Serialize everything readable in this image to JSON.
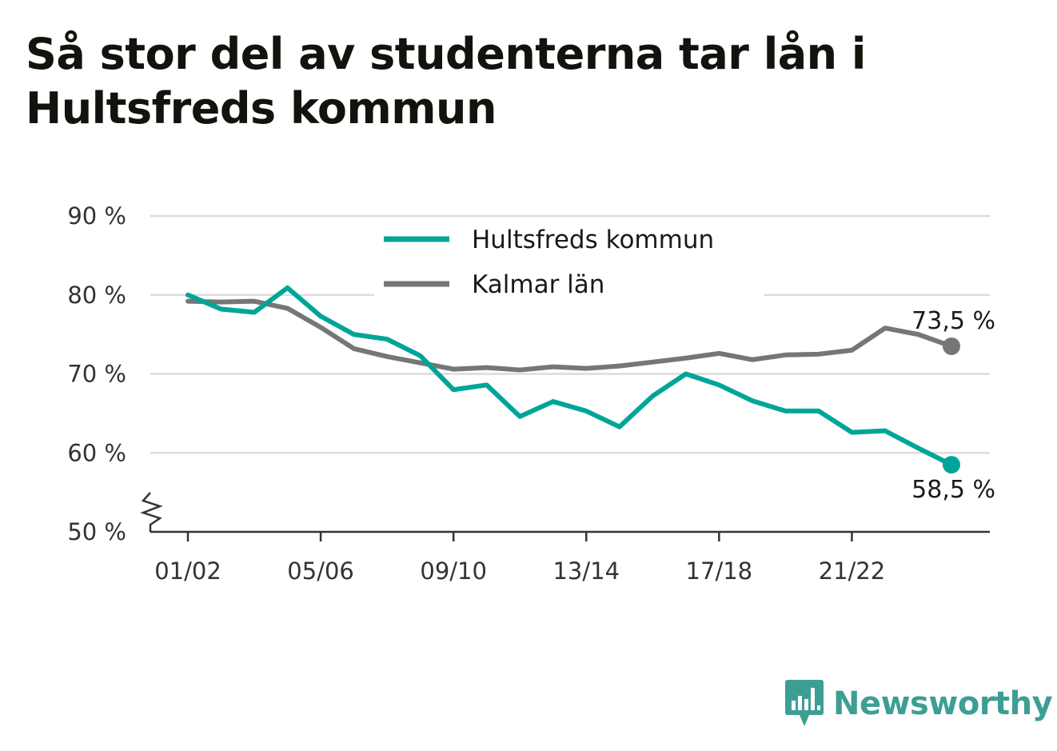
{
  "title_lines": [
    "Så stor del av studenterna tar lån i",
    "Hultsfreds kommun"
  ],
  "brand": {
    "name": "Newsworthy",
    "icon": "bar-chart-speech-bubble-icon",
    "color": "#3d9e94"
  },
  "chart_data": {
    "type": "line",
    "title": "Så stor del av studenterna tar lån i Hultsfreds kommun",
    "xlabel": "",
    "ylabel": "",
    "x": [
      "01/02",
      "02/03",
      "03/04",
      "04/05",
      "05/06",
      "06/07",
      "07/08",
      "08/09",
      "09/10",
      "10/11",
      "11/12",
      "12/13",
      "13/14",
      "14/15",
      "15/16",
      "16/17",
      "17/18",
      "18/19",
      "19/20",
      "20/21",
      "21/22",
      "22/23",
      "23/24",
      "24/25"
    ],
    "x_tick_labels": [
      "01/02",
      "05/06",
      "09/10",
      "13/14",
      "17/18",
      "21/22"
    ],
    "y_ticks": [
      50,
      60,
      70,
      80,
      90
    ],
    "y_tick_labels": [
      "50 %",
      "60 %",
      "70 %",
      "80 %",
      "90 %"
    ],
    "ylim": [
      50,
      90
    ],
    "y_axis_break": true,
    "grid": true,
    "legend_position": "top-center",
    "series": [
      {
        "name": "Hultsfreds kommun",
        "color": "#00a59a",
        "values": [
          80.0,
          78.2,
          77.8,
          80.9,
          77.3,
          75.0,
          74.4,
          72.3,
          68.0,
          68.6,
          64.6,
          66.5,
          65.3,
          63.3,
          67.2,
          70.0,
          68.6,
          66.6,
          65.3,
          65.3,
          62.6,
          62.8,
          60.6,
          58.5
        ],
        "end_label": "58,5 %"
      },
      {
        "name": "Kalmar län",
        "color": "#767676",
        "values": [
          79.2,
          79.1,
          79.2,
          78.3,
          75.9,
          73.2,
          72.2,
          71.4,
          70.6,
          70.8,
          70.5,
          70.9,
          70.7,
          71.0,
          71.5,
          72.0,
          72.6,
          71.8,
          72.4,
          72.5,
          73.0,
          75.8,
          75.0,
          73.5
        ],
        "end_label": "73,5 %"
      }
    ]
  }
}
